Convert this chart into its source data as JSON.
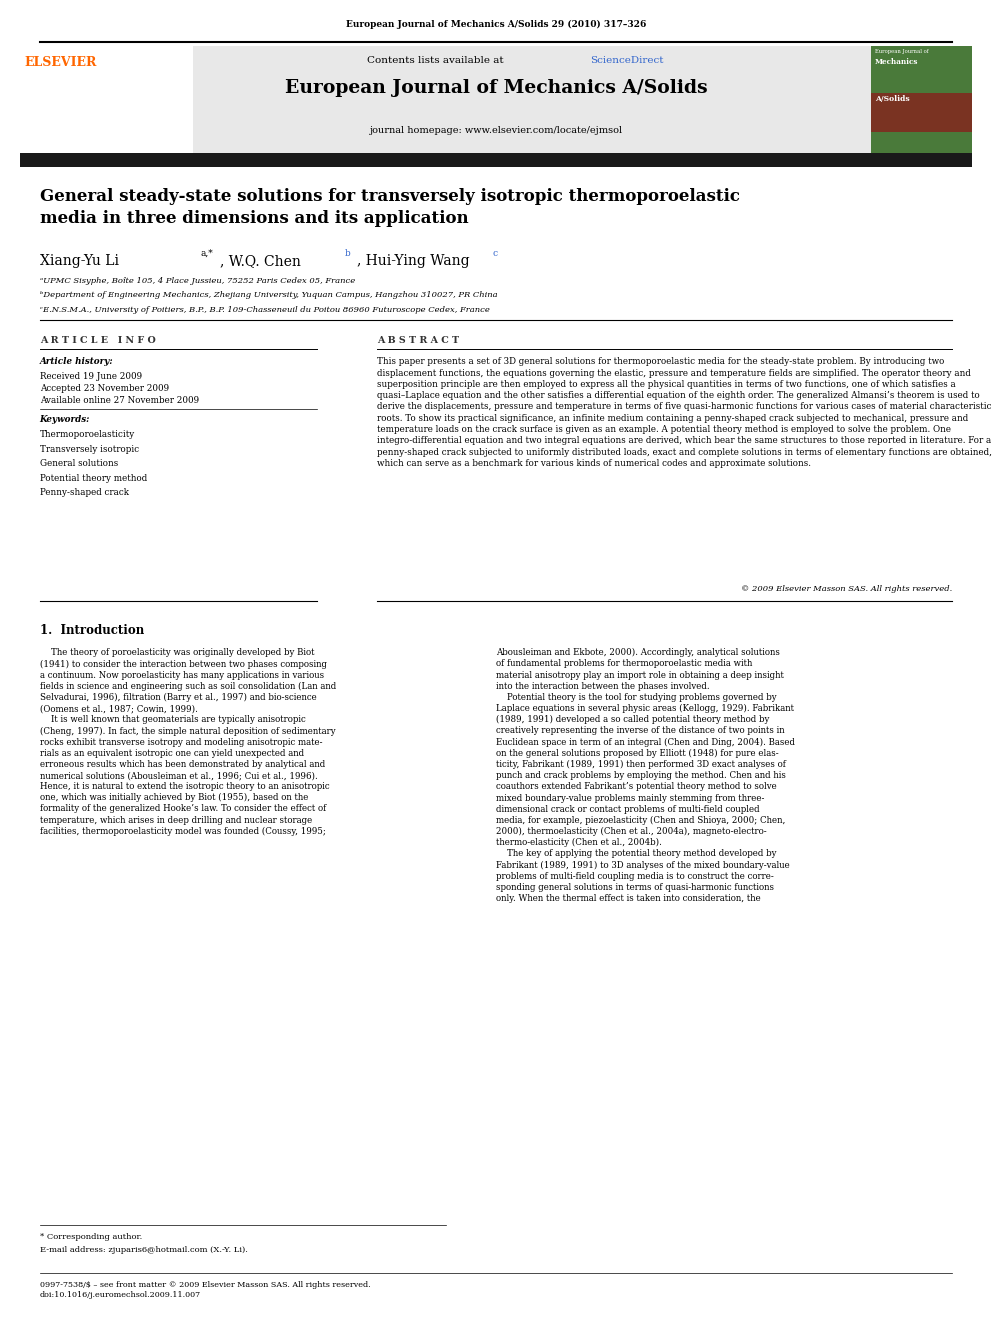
{
  "page_width": 9.92,
  "page_height": 13.23,
  "bg_color": "#ffffff",
  "journal_ref": "European Journal of Mechanics A/Solids 29 (2010) 317–326",
  "journal_name": "European Journal of Mechanics A/Solids",
  "contents_line": "Contents lists available at ",
  "sciencedirect_text": "ScienceDirect",
  "sciencedirect_color": "#3366cc",
  "homepage_line": "journal homepage: www.elsevier.com/locate/ejmsol",
  "header_bg": "#e8e8e8",
  "dark_bar_color": "#1a1a1a",
  "paper_title": "General steady-state solutions for transversely isotropic thermoporoelastic\nmedia in three dimensions and its application",
  "authors": "Xiang-Yu Li",
  "author_sup1": "a,*",
  "author2": ", W.Q. Chen",
  "author_sup2": "b",
  "author3": ", Hui-Ying Wang",
  "author_sup3": "c",
  "affil_a": "ᵃUPMC Sisyphe, Boîte 105, 4 Place Jussieu, 75252 Paris Cedex 05, France",
  "affil_b": "ᵇDepartment of Engineering Mechanics, Zhejiang University, Yuquan Campus, Hangzhou 310027, PR China",
  "affil_c": "ᶜE.N.S.M.A., University of Poitiers, B.P., B.P. 109-Chasseneuil du Poitou 86960 Futuroscope Cedex, France",
  "article_info_header": "A R T I C L E   I N F O",
  "abstract_header": "A B S T R A C T",
  "article_history_label": "Article history:",
  "received": "Received 19 June 2009",
  "accepted": "Accepted 23 November 2009",
  "available": "Available online 27 November 2009",
  "keywords_label": "Keywords:",
  "keywords": [
    "Thermoporoelasticity",
    "Transversely isotropic",
    "General solutions",
    "Potential theory method",
    "Penny-shaped crack"
  ],
  "abstract_text": "This paper presents a set of 3D general solutions for thermoporoelastic media for the steady-state problem. By introducing two displacement functions, the equations governing the elastic, pressure and temperature fields are simplified. The operator theory and superposition principle are then employed to express all the physical quantities in terms of two functions, one of which satisfies a quasi–Laplace equation and the other satisfies a differential equation of the eighth order. The generalized Almansi’s theorem is used to derive the displacements, pressure and temperature in terms of five quasi-harmonic functions for various cases of material characteristic roots. To show its practical significance, an infinite medium containing a penny-shaped crack subjected to mechanical, pressure and temperature loads on the crack surface is given as an example. A potential theory method is employed to solve the problem. One integro-differential equation and two integral equations are derived, which bear the same structures to those reported in literature. For a penny-shaped crack subjected to uniformly distributed loads, exact and complete solutions in terms of elementary functions are obtained, which can serve as a benchmark for various kinds of numerical codes and approximate solutions.",
  "copyright": "© 2009 Elsevier Masson SAS. All rights reserved.",
  "section1_title": "1.  Introduction",
  "intro_col1": "    The theory of poroelasticity was originally developed by Biot\n(1941) to consider the interaction between two phases composing\na continuum. Now poroelasticity has many applications in various\nfields in science and engineering such as soil consolidation (Lan and\nSelvadurai, 1996), filtration (Barry et al., 1997) and bio-science\n(Oomens et al., 1987; Cowin, 1999).\n    It is well known that geomaterials are typically anisotropic\n(Cheng, 1997). In fact, the simple natural deposition of sedimentary\nrocks exhibit transverse isotropy and modeling anisotropic mate-\nrials as an equivalent isotropic one can yield unexpected and\nerroneous results which has been demonstrated by analytical and\nnumerical solutions (Abousleiman et al., 1996; Cui et al., 1996).\nHence, it is natural to extend the isotropic theory to an anisotropic\none, which was initially achieved by Biot (1955), based on the\nformality of the generalized Hooke’s law. To consider the effect of\ntemperature, which arises in deep drilling and nuclear storage\nfacilities, thermoporoelasticity model was founded (Coussy, 1995;",
  "intro_col2": "Abousleiman and Ekbote, 2000). Accordingly, analytical solutions\nof fundamental problems for thermoporoelastic media with\nmaterial anisotropy play an import role in obtaining a deep insight\ninto the interaction between the phases involved.\n    Potential theory is the tool for studying problems governed by\nLaplace equations in several physic areas (Kellogg, 1929). Fabrikant\n(1989, 1991) developed a so called potential theory method by\ncreatively representing the inverse of the distance of two points in\nEuclidean space in term of an integral (Chen and Ding, 2004). Based\non the general solutions proposed by Elliott (1948) for pure elas-\nticity, Fabrikant (1989, 1991) then performed 3D exact analyses of\npunch and crack problems by employing the method. Chen and his\ncoauthors extended Fabrikant’s potential theory method to solve\nmixed boundary-value problems mainly stemming from three-\ndimensional crack or contact problems of multi-field coupled\nmedia, for example, piezoelasticity (Chen and Shioya, 2000; Chen,\n2000), thermoelasticity (Chen et al., 2004a), magneto-electro-\nthermo-elasticity (Chen et al., 2004b).\n    The key of applying the potential theory method developed by\nFabrikant (1989, 1991) to 3D analyses of the mixed boundary-value\nproblems of multi-field coupling media is to construct the corre-\nsponding general solutions in terms of quasi-harmonic functions\nonly. When the thermal effect is taken into consideration, the",
  "footnote_star": "* Corresponding author.",
  "footnote_email": "E-mail address: zjuparis6@hotmail.com (X.-Y. Li).",
  "footer_text": "0997-7538/$ – see front matter © 2009 Elsevier Masson SAS. All rights reserved.\ndoi:10.1016/j.euromechsol.2009.11.007",
  "link_color": "#3366cc",
  "elsevier_orange": "#ff6600"
}
